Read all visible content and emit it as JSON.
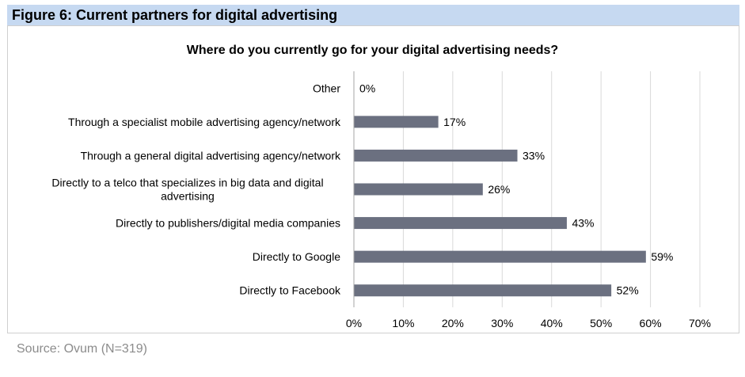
{
  "figure": {
    "heading": "Figure 6: Current partners for digital advertising",
    "source": "Source: Ovum (N=319)"
  },
  "colors": {
    "bar": "#6b7080",
    "header_background": "#c6d9f1",
    "gridline": "#d9d9d9"
  },
  "chart_data": {
    "type": "bar",
    "orientation": "horizontal",
    "title": "Where do you currently go for your digital advertising needs?",
    "categories": [
      [
        "Other"
      ],
      [
        "Through a specialist mobile advertising agency/network"
      ],
      [
        "Through a general digital advertising agency/network"
      ],
      [
        "Directly to a telco that specializes in big data and digital",
        "advertising"
      ],
      [
        "Directly to publishers/digital media companies"
      ],
      [
        "Directly to Google"
      ],
      [
        "Directly to Facebook"
      ]
    ],
    "values": [
      0,
      17,
      33,
      26,
      43,
      59,
      52
    ],
    "value_labels": [
      "0%",
      "17%",
      "33%",
      "26%",
      "43%",
      "59%",
      "52%"
    ],
    "xlim": [
      0,
      70
    ],
    "xticks": [
      0,
      10,
      20,
      30,
      40,
      50,
      60,
      70
    ],
    "xtick_labels": [
      "0%",
      "10%",
      "20%",
      "30%",
      "40%",
      "50%",
      "60%",
      "70%"
    ],
    "grid": true,
    "legend": "none"
  }
}
